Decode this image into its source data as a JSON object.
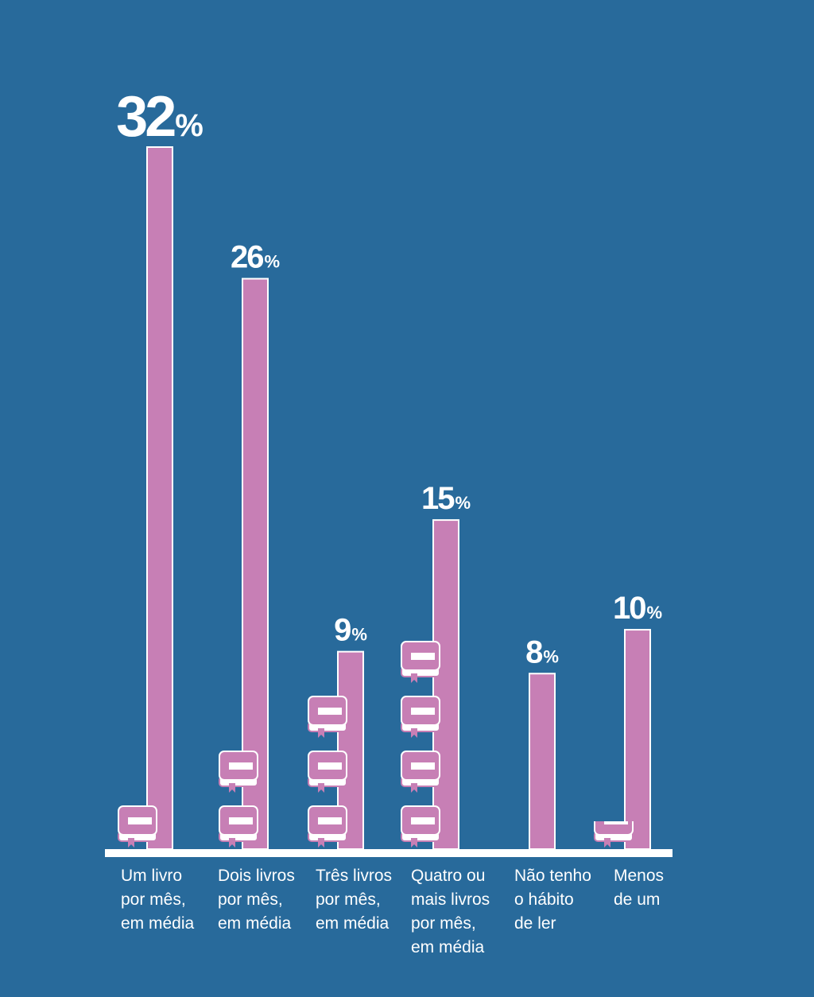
{
  "colors": {
    "background": "#286a9b",
    "bar": "#c77fb5",
    "bar_outline": "#ffffff",
    "baseline": "#ffffff",
    "book_cover": "#c77fb5",
    "book_pages": "#ffffff",
    "text": "#ffffff"
  },
  "chart_data": {
    "type": "bar",
    "title": "",
    "xlabel": "",
    "ylabel": "",
    "ylim": [
      0,
      32
    ],
    "grid": false,
    "unit_symbol": "%",
    "icon": "book-icon",
    "categories": [
      [
        "Um livro",
        "por mês,",
        "em média"
      ],
      [
        "Dois livros",
        "por mês,",
        "em média"
      ],
      [
        "Três livros",
        "por mês,",
        "em média"
      ],
      [
        "Quatro ou",
        "mais livros",
        "por mês,",
        "em média"
      ],
      [
        "Não tenho",
        "o hábito",
        "de ler"
      ],
      [
        "Menos",
        "de um"
      ]
    ],
    "values": [
      32,
      26,
      9,
      15,
      8,
      10
    ],
    "value_labels": [
      "32",
      "26",
      "9",
      "15",
      "8",
      "10"
    ],
    "books_per_category": [
      1,
      2,
      3,
      4,
      0,
      0.5
    ]
  }
}
